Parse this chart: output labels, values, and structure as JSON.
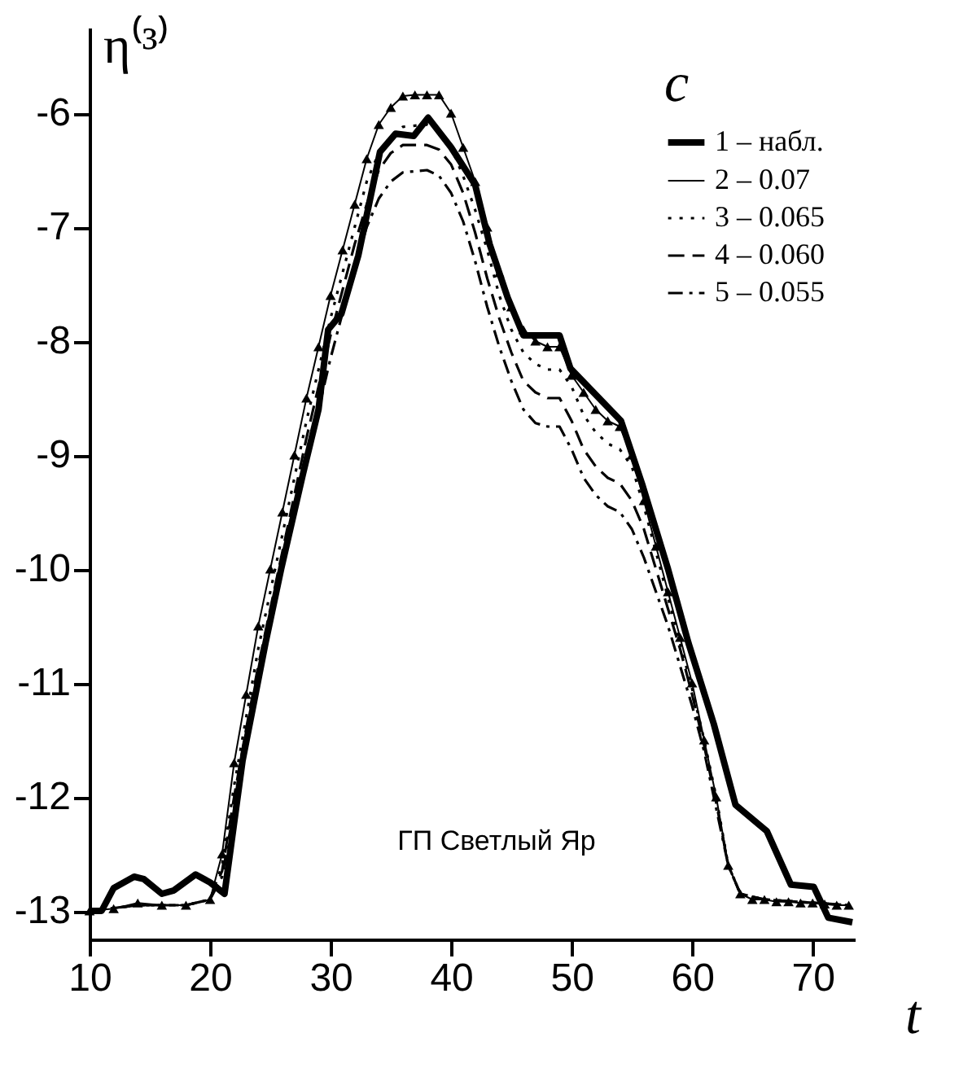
{
  "chart_data": {
    "type": "line",
    "xlabel": "t",
    "ylabel": "η⁽³⁾",
    "legend_title": "c",
    "legend": "top right",
    "grid": false,
    "xlim": [
      10,
      73.5
    ],
    "xticks": [
      10,
      20,
      30,
      40,
      50,
      60,
      70
    ],
    "ylim": [
      -13.25,
      -5.25
    ],
    "yticks": [
      -13,
      -12,
      -11,
      -10,
      -9,
      -8,
      -7,
      -6
    ],
    "annotations": [
      "ГП Светлый Яр"
    ],
    "series": [
      {
        "name": "1 – набл.",
        "color": "#000000",
        "line_style": "solid",
        "marker": "none",
        "x": [
          10,
          11,
          12,
          13.7,
          14.5,
          16,
          17,
          18.8,
          20,
          21.2,
          22.7,
          24.6,
          25.9,
          27.7,
          29,
          29.8,
          30.9,
          32.3,
          34.1,
          35.4,
          36.9,
          38.1,
          40,
          42,
          43.2,
          44.7,
          46,
          49,
          49.9,
          54.1,
          55.9,
          58,
          59.7,
          61.8,
          63.6,
          66.2,
          68.2,
          70.1,
          71.3,
          73.3
        ],
        "values": [
          -13,
          -13,
          -12.8,
          -12.7,
          -12.72,
          -12.85,
          -12.82,
          -12.68,
          -12.75,
          -12.85,
          -11.68,
          -10.65,
          -10.0,
          -9.17,
          -8.6,
          -7.9,
          -7.76,
          -7.25,
          -6.34,
          -6.18,
          -6.2,
          -6.04,
          -6.3,
          -6.63,
          -7.15,
          -7.62,
          -7.95,
          -7.95,
          -8.24,
          -8.7,
          -9.27,
          -10.0,
          -10.65,
          -11.36,
          -12.07,
          -12.3,
          -12.77,
          -12.79,
          -13.06,
          -13.1
        ]
      },
      {
        "name": "2 – 0.07",
        "color": "#000000",
        "line_style": "solid",
        "marker": "triangle",
        "x": [
          10,
          12,
          14,
          16,
          18,
          20,
          21,
          22,
          23,
          24,
          25,
          26,
          27,
          28,
          29,
          30,
          31,
          32,
          33,
          34,
          35,
          36,
          37,
          38,
          39,
          40,
          41,
          42,
          43,
          44,
          45,
          46,
          47,
          48,
          49,
          50,
          51,
          52,
          53,
          54,
          55,
          56,
          57,
          58,
          59,
          60,
          61,
          62,
          63,
          64,
          65,
          66,
          67,
          68,
          69,
          70,
          71,
          72,
          73
        ],
        "values": [
          -13,
          -12.98,
          -12.93,
          -12.95,
          -12.95,
          -12.9,
          -12.5,
          -11.7,
          -11.1,
          -10.5,
          -10.0,
          -9.5,
          -9.0,
          -8.5,
          -8.05,
          -7.6,
          -7.2,
          -6.8,
          -6.4,
          -6.1,
          -5.95,
          -5.85,
          -5.84,
          -5.84,
          -5.84,
          -6.0,
          -6.3,
          -6.6,
          -7.0,
          -7.4,
          -7.7,
          -7.9,
          -8.0,
          -8.05,
          -8.05,
          -8.3,
          -8.45,
          -8.6,
          -8.7,
          -8.75,
          -9.0,
          -9.4,
          -9.8,
          -10.2,
          -10.6,
          -11.0,
          -11.5,
          -12.0,
          -12.6,
          -12.85,
          -12.9,
          -12.9,
          -12.92,
          -12.92,
          -12.93,
          -12.93,
          -12.94,
          -12.95,
          -12.95
        ]
      },
      {
        "name": "3 – 0.065",
        "color": "#000000",
        "line_style": "dotted",
        "marker": "none",
        "x": [
          10,
          14,
          18,
          20,
          21,
          22,
          23,
          24,
          25,
          26,
          27,
          28,
          29,
          30,
          31,
          32,
          33,
          34,
          35,
          36,
          38,
          39,
          40,
          41,
          42,
          43,
          44,
          45,
          46,
          47,
          48,
          49,
          50,
          51,
          52,
          53,
          54,
          55,
          56,
          57,
          58,
          59,
          60,
          61,
          62,
          63,
          64,
          66,
          73
        ],
        "values": [
          -13,
          -12.95,
          -12.95,
          -12.9,
          -12.6,
          -11.9,
          -11.3,
          -10.7,
          -10.2,
          -9.7,
          -9.2,
          -8.7,
          -8.25,
          -7.8,
          -7.4,
          -7.0,
          -6.6,
          -6.35,
          -6.2,
          -6.12,
          -6.1,
          -6.15,
          -6.3,
          -6.55,
          -6.85,
          -7.2,
          -7.6,
          -7.9,
          -8.1,
          -8.2,
          -8.25,
          -8.25,
          -8.4,
          -8.65,
          -8.8,
          -8.9,
          -8.95,
          -9.1,
          -9.45,
          -9.85,
          -10.25,
          -10.65,
          -11.05,
          -11.5,
          -12.0,
          -12.6,
          -12.85,
          -12.9,
          -12.95
        ]
      },
      {
        "name": "4 – 0.060",
        "color": "#000000",
        "line_style": "dashed",
        "marker": "none",
        "x": [
          10,
          14,
          18,
          20,
          21,
          22,
          23,
          24,
          25,
          26,
          27,
          28,
          29,
          30,
          31,
          32,
          33,
          34,
          35,
          36,
          38,
          39,
          40,
          41,
          42,
          43,
          44,
          45,
          46,
          47,
          48,
          49,
          50,
          51,
          52,
          53,
          54,
          55,
          56,
          57,
          58,
          59,
          60,
          61,
          62,
          63,
          64,
          66,
          73
        ],
        "values": [
          -13,
          -12.95,
          -12.95,
          -12.9,
          -12.65,
          -12.0,
          -11.4,
          -10.85,
          -10.35,
          -9.85,
          -9.35,
          -8.85,
          -8.4,
          -7.95,
          -7.55,
          -7.15,
          -6.8,
          -6.5,
          -6.35,
          -6.28,
          -6.28,
          -6.32,
          -6.45,
          -6.7,
          -7.05,
          -7.45,
          -7.8,
          -8.1,
          -8.35,
          -8.45,
          -8.5,
          -8.5,
          -8.7,
          -8.95,
          -9.1,
          -9.2,
          -9.25,
          -9.4,
          -9.65,
          -10.0,
          -10.35,
          -10.7,
          -11.1,
          -11.55,
          -12.05,
          -12.6,
          -12.85,
          -12.9,
          -12.95
        ]
      },
      {
        "name": "5 – 0.055",
        "color": "#000000",
        "line_style": "dashdot",
        "marker": "none",
        "x": [
          10,
          14,
          18,
          20,
          21,
          22,
          23,
          24,
          25,
          26,
          27,
          28,
          29,
          30,
          31,
          32,
          33,
          34,
          35,
          36,
          38,
          39,
          40,
          41,
          42,
          43,
          44,
          45,
          46,
          47,
          48,
          49,
          50,
          51,
          52,
          53,
          54,
          55,
          56,
          57,
          58,
          59,
          60,
          61,
          62,
          63,
          64,
          66,
          73
        ],
        "values": [
          -13,
          -12.95,
          -12.95,
          -12.9,
          -12.7,
          -12.1,
          -11.55,
          -11.0,
          -10.5,
          -10.0,
          -9.5,
          -9.05,
          -8.6,
          -8.15,
          -7.75,
          -7.35,
          -7.0,
          -6.75,
          -6.6,
          -6.52,
          -6.5,
          -6.55,
          -6.7,
          -6.95,
          -7.3,
          -7.7,
          -8.05,
          -8.35,
          -8.6,
          -8.72,
          -8.75,
          -8.75,
          -8.95,
          -9.2,
          -9.35,
          -9.45,
          -9.5,
          -9.65,
          -9.9,
          -10.2,
          -10.5,
          -10.85,
          -11.2,
          -11.6,
          -12.1,
          -12.6,
          -12.85,
          -12.9,
          -12.95
        ]
      }
    ]
  }
}
